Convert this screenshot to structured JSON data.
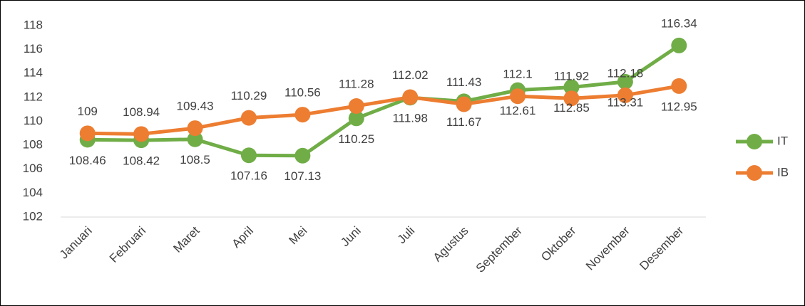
{
  "chart_data": {
    "type": "line",
    "categories": [
      "Januari",
      "Februari",
      "Maret",
      "April",
      "Mei",
      "Juni",
      "Juli",
      "Agustus",
      "September",
      "Oktober",
      "November",
      "Desember"
    ],
    "series": [
      {
        "name": "IT",
        "color": "#70ad47",
        "values": [
          108.46,
          108.42,
          108.5,
          107.16,
          107.13,
          110.25,
          111.98,
          111.67,
          112.61,
          112.85,
          113.31,
          116.34
        ]
      },
      {
        "name": "IB",
        "color": "#ed7d31",
        "values": [
          109,
          108.94,
          109.43,
          110.29,
          110.56,
          111.28,
          112.02,
          111.43,
          112.1,
          111.92,
          112.18,
          112.95
        ]
      }
    ],
    "ylim": [
      102,
      118
    ],
    "yticks": [
      102,
      104,
      106,
      108,
      110,
      112,
      114,
      116,
      118
    ],
    "grid": false,
    "legend": "right"
  }
}
